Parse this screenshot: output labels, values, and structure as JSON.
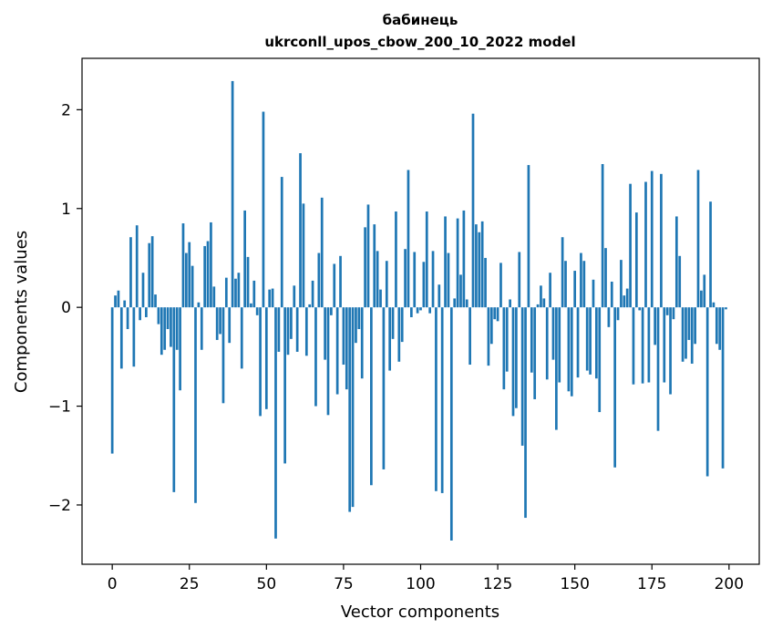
{
  "chart_data": {
    "type": "bar",
    "title": "бабинець",
    "subtitle": "ukrconll_upos_cbow_200_10_2022 model",
    "xlabel": "Vector components",
    "ylabel": "Components values",
    "xlim": [
      -9.8,
      209.8
    ],
    "ylim": [
      -2.6,
      2.52
    ],
    "xticks": [
      0,
      25,
      50,
      75,
      100,
      125,
      150,
      175,
      200
    ],
    "yticks": [
      -2,
      -1,
      0,
      1,
      2
    ],
    "ytick_labels": [
      "−2",
      "−1",
      "0",
      "1",
      "2"
    ],
    "grid": false,
    "bar_color": "#1f77b4",
    "x": [
      0,
      1,
      2,
      3,
      4,
      5,
      6,
      7,
      8,
      9,
      10,
      11,
      12,
      13,
      14,
      15,
      16,
      17,
      18,
      19,
      20,
      21,
      22,
      23,
      24,
      25,
      26,
      27,
      28,
      29,
      30,
      31,
      32,
      33,
      34,
      35,
      36,
      37,
      38,
      39,
      40,
      41,
      42,
      43,
      44,
      45,
      46,
      47,
      48,
      49,
      50,
      51,
      52,
      53,
      54,
      55,
      56,
      57,
      58,
      59,
      60,
      61,
      62,
      63,
      64,
      65,
      66,
      67,
      68,
      69,
      70,
      71,
      72,
      73,
      74,
      75,
      76,
      77,
      78,
      79,
      80,
      81,
      82,
      83,
      84,
      85,
      86,
      87,
      88,
      89,
      90,
      91,
      92,
      93,
      94,
      95,
      96,
      97,
      98,
      99,
      100,
      101,
      102,
      103,
      104,
      105,
      106,
      107,
      108,
      109,
      110,
      111,
      112,
      113,
      114,
      115,
      116,
      117,
      118,
      119,
      120,
      121,
      122,
      123,
      124,
      125,
      126,
      127,
      128,
      129,
      130,
      131,
      132,
      133,
      134,
      135,
      136,
      137,
      138,
      139,
      140,
      141,
      142,
      143,
      144,
      145,
      146,
      147,
      148,
      149,
      150,
      151,
      152,
      153,
      154,
      155,
      156,
      157,
      158,
      159,
      160,
      161,
      162,
      163,
      164,
      165,
      166,
      167,
      168,
      169,
      170,
      171,
      172,
      173,
      174,
      175,
      176,
      177,
      178,
      179,
      180,
      181,
      182,
      183,
      184,
      185,
      186,
      187,
      188,
      189,
      190,
      191,
      192,
      193,
      194,
      195,
      196,
      197,
      198,
      199
    ],
    "values": [
      -1.48,
      0.12,
      0.17,
      -0.62,
      0.07,
      -0.22,
      0.71,
      -0.6,
      0.83,
      -0.13,
      0.35,
      -0.1,
      0.65,
      0.72,
      0.13,
      -0.17,
      -0.48,
      -0.43,
      -0.22,
      -0.4,
      -1.87,
      -0.43,
      -0.84,
      0.85,
      0.55,
      0.66,
      0.42,
      -1.98,
      0.05,
      -0.43,
      0.62,
      0.67,
      0.86,
      0.21,
      -0.33,
      -0.27,
      -0.97,
      0.3,
      -0.36,
      2.29,
      0.29,
      0.35,
      -0.62,
      0.98,
      0.51,
      0.04,
      0.27,
      -0.08,
      -1.1,
      1.98,
      -1.03,
      0.18,
      0.19,
      -2.34,
      -0.45,
      1.32,
      -1.58,
      -0.48,
      -0.32,
      0.22,
      -0.45,
      1.56,
      1.05,
      -0.49,
      0.03,
      0.27,
      -1.0,
      0.55,
      1.11,
      -0.53,
      -1.09,
      -0.08,
      0.44,
      -0.88,
      0.52,
      -0.58,
      -0.83,
      -2.07,
      -2.02,
      -0.36,
      -0.22,
      -0.72,
      0.81,
      1.04,
      -1.8,
      0.84,
      0.57,
      0.18,
      -1.64,
      0.47,
      -0.64,
      -0.32,
      0.97,
      -0.55,
      -0.35,
      0.59,
      1.39,
      -0.1,
      0.56,
      -0.06,
      -0.03,
      0.46,
      0.97,
      -0.06,
      0.57,
      -1.86,
      0.23,
      -1.88,
      0.92,
      0.55,
      -2.36,
      0.09,
      0.9,
      0.33,
      0.98,
      0.08,
      -0.58,
      1.96,
      0.84,
      0.76,
      0.87,
      0.5,
      -0.59,
      -0.37,
      -0.12,
      -0.14,
      0.45,
      -0.83,
      -0.65,
      0.08,
      -1.1,
      -1.02,
      0.56,
      -1.4,
      -2.13,
      1.44,
      -0.66,
      -0.93,
      0.03,
      0.22,
      0.09,
      -0.73,
      0.35,
      -0.53,
      -1.24,
      -0.76,
      0.71,
      0.47,
      -0.85,
      -0.9,
      0.37,
      -0.71,
      0.55,
      0.47,
      -0.64,
      -0.68,
      0.28,
      -0.72,
      -1.06,
      1.45,
      0.6,
      -0.2,
      0.26,
      -1.62,
      -0.13,
      0.48,
      0.12,
      0.19,
      1.25,
      -0.78,
      0.96,
      -0.03,
      -0.77,
      1.27,
      -0.76,
      1.38,
      -0.38,
      -1.25,
      1.35,
      -0.76,
      -0.08,
      -0.88,
      -0.12,
      0.92,
      0.52,
      -0.55,
      -0.52,
      -0.33,
      -0.57,
      -0.37,
      1.39,
      0.17,
      0.33,
      -1.71,
      1.07,
      0.05,
      -0.37,
      -0.43,
      -1.63,
      -0.02
    ]
  }
}
